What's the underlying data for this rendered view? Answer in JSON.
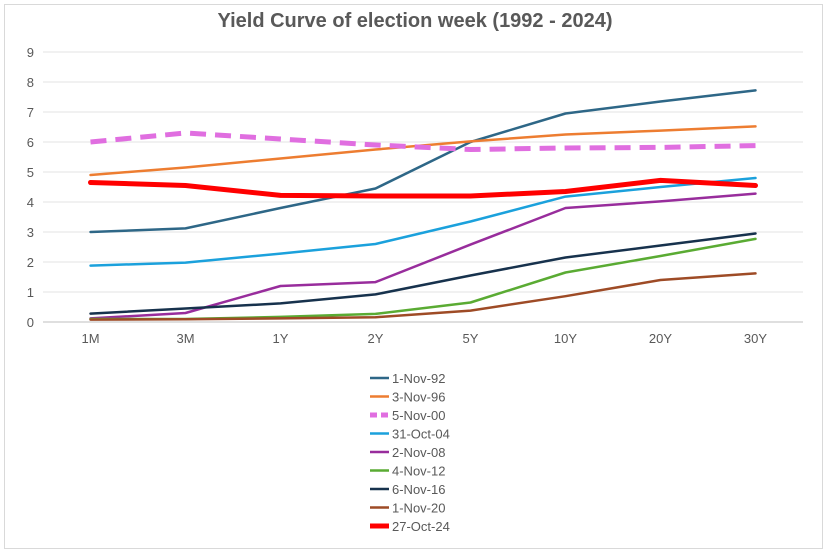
{
  "chart_data": {
    "type": "line",
    "title": "Yield Curve of election week (1992 - 2024)",
    "xlabel": "",
    "ylabel": "",
    "categories": [
      "1M",
      "3M",
      "1Y",
      "2Y",
      "5Y",
      "10Y",
      "20Y",
      "30Y"
    ],
    "ylim": [
      0,
      9
    ],
    "yticks": [
      "0",
      "1",
      "2",
      "3",
      "4",
      "5",
      "6",
      "7",
      "8",
      "9"
    ],
    "grid": "horizontal",
    "legend_position": "bottom",
    "series": [
      {
        "name": "1-Nov-92",
        "color": "#2e6787",
        "dash": "solid",
        "weight": "normal",
        "values": [
          3.0,
          3.12,
          3.8,
          4.45,
          6.0,
          6.95,
          7.35,
          7.72
        ]
      },
      {
        "name": "3-Nov-96",
        "color": "#ed7d31",
        "dash": "solid",
        "weight": "normal",
        "values": [
          4.9,
          5.15,
          5.45,
          5.75,
          6.02,
          6.25,
          6.38,
          6.52
        ]
      },
      {
        "name": "5-Nov-00",
        "color": "#e06ee0",
        "dash": "dashed",
        "weight": "thick",
        "values": [
          6.0,
          6.3,
          6.1,
          5.9,
          5.75,
          5.8,
          5.82,
          5.88
        ]
      },
      {
        "name": "31-Oct-04",
        "color": "#1ba1dc",
        "dash": "solid",
        "weight": "normal",
        "values": [
          1.88,
          1.98,
          2.28,
          2.6,
          3.35,
          4.18,
          4.5,
          4.8
        ]
      },
      {
        "name": "2-Nov-08",
        "color": "#982d9c",
        "dash": "solid",
        "weight": "normal",
        "values": [
          0.12,
          0.3,
          1.2,
          1.33,
          2.58,
          3.8,
          4.02,
          4.28
        ]
      },
      {
        "name": "4-Nov-12",
        "color": "#5aab33",
        "dash": "solid",
        "weight": "normal",
        "values": [
          0.1,
          0.1,
          0.17,
          0.27,
          0.65,
          1.65,
          2.2,
          2.77
        ]
      },
      {
        "name": "6-Nov-16",
        "color": "#17324d",
        "dash": "solid",
        "weight": "normal",
        "values": [
          0.28,
          0.45,
          0.62,
          0.92,
          1.55,
          2.15,
          2.55,
          2.95
        ]
      },
      {
        "name": "1-Nov-20",
        "color": "#9e4b26",
        "dash": "solid",
        "weight": "normal",
        "values": [
          0.08,
          0.09,
          0.12,
          0.16,
          0.38,
          0.86,
          1.4,
          1.62
        ]
      },
      {
        "name": "27-Oct-24",
        "color": "#ff0000",
        "dash": "solid",
        "weight": "thick",
        "values": [
          4.65,
          4.55,
          4.22,
          4.2,
          4.2,
          4.35,
          4.72,
          4.55
        ]
      }
    ]
  }
}
